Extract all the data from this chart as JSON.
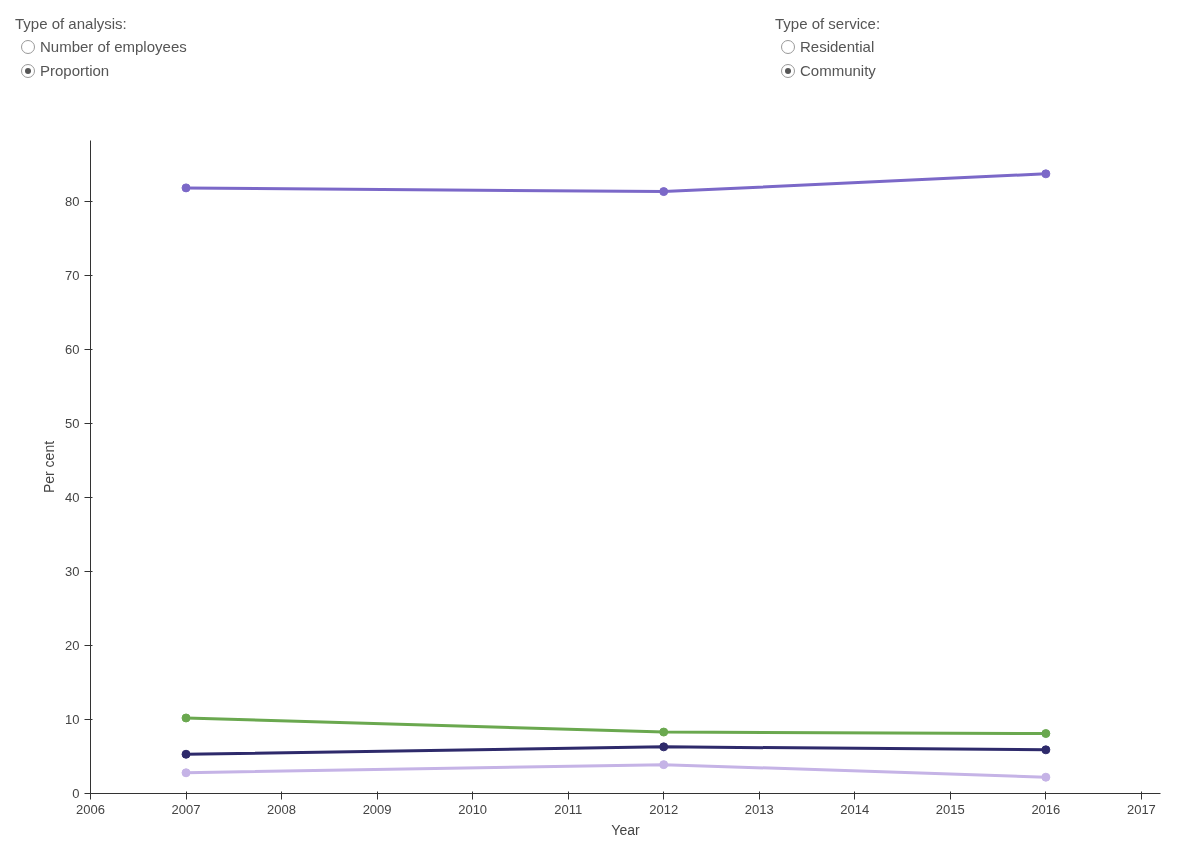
{
  "chart_data": {
    "type": "line",
    "xlabel": "Year",
    "ylabel": "Per cent",
    "annotations": [
      "Type of analysis:",
      "Number of employees",
      "Proportion",
      "Type of service:",
      "Residential",
      "Community"
    ],
    "x": [
      2007,
      2012,
      2016
    ],
    "series": [
      {
        "color": "#7b68c8",
        "values": [
          81.8,
          81.3,
          83.7
        ]
      },
      {
        "color": "#6aa84f",
        "values": [
          10.2,
          8.3,
          8.1
        ]
      },
      {
        "color": "#2e2a6b",
        "values": [
          5.3,
          6.3,
          5.9
        ]
      },
      {
        "color": "#c5b3e6",
        "values": [
          2.8,
          3.9,
          2.2
        ]
      }
    ],
    "xlim": [
      2006,
      2017.2
    ],
    "xticks": [
      2006,
      2007,
      2008,
      2009,
      2010,
      2011,
      2012,
      2013,
      2014,
      2015,
      2016,
      2017
    ],
    "ylim": [
      0,
      88.2
    ],
    "yticks": [
      0,
      10,
      20,
      30,
      40,
      50,
      60,
      70,
      80
    ],
    "grid": false,
    "marker": "circle",
    "line_style": "solid"
  }
}
